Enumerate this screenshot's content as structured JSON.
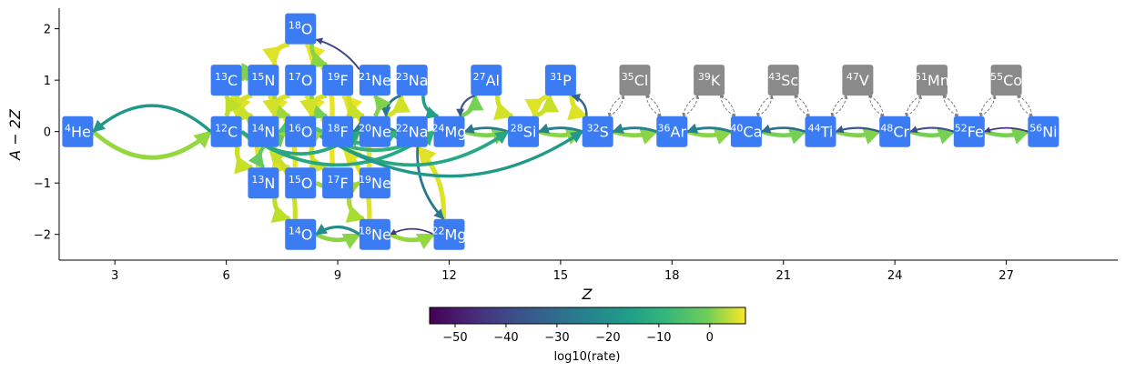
{
  "chart_data": {
    "type": "network",
    "xlabel": "Z",
    "ylabel": "A − 2Z",
    "xlim": [
      1.5,
      30
    ],
    "ylim": [
      -2.5,
      2.4
    ],
    "xticks": [
      3,
      6,
      9,
      12,
      15,
      18,
      21,
      24,
      27
    ],
    "yticks": [
      -2,
      -1,
      0,
      1,
      2
    ],
    "xtick_labels": [
      "3",
      "6",
      "9",
      "12",
      "15",
      "18",
      "21",
      "24",
      "27"
    ],
    "ytick_labels": [
      "−2",
      "−1",
      "0",
      "1",
      "2"
    ],
    "nodes": [
      {
        "mass": "4",
        "sym": "He",
        "z": 2,
        "n": 2,
        "status": "active"
      },
      {
        "mass": "12",
        "sym": "C",
        "z": 6,
        "n": 6,
        "status": "active"
      },
      {
        "mass": "13",
        "sym": "C",
        "z": 6,
        "n": 7,
        "status": "active"
      },
      {
        "mass": "13",
        "sym": "N",
        "z": 7,
        "n": 6,
        "status": "active"
      },
      {
        "mass": "14",
        "sym": "N",
        "z": 7,
        "n": 7,
        "status": "active"
      },
      {
        "mass": "15",
        "sym": "N",
        "z": 7,
        "n": 8,
        "status": "active"
      },
      {
        "mass": "14",
        "sym": "O",
        "z": 8,
        "n": 6,
        "status": "active"
      },
      {
        "mass": "15",
        "sym": "O",
        "z": 8,
        "n": 7,
        "status": "active"
      },
      {
        "mass": "16",
        "sym": "O",
        "z": 8,
        "n": 8,
        "status": "active"
      },
      {
        "mass": "17",
        "sym": "O",
        "z": 8,
        "n": 9,
        "status": "active"
      },
      {
        "mass": "18",
        "sym": "O",
        "z": 8,
        "n": 10,
        "status": "active"
      },
      {
        "mass": "17",
        "sym": "F",
        "z": 9,
        "n": 8,
        "status": "active"
      },
      {
        "mass": "18",
        "sym": "F",
        "z": 9,
        "n": 9,
        "status": "active"
      },
      {
        "mass": "19",
        "sym": "F",
        "z": 9,
        "n": 10,
        "status": "active"
      },
      {
        "mass": "18",
        "sym": "Ne",
        "z": 10,
        "n": 8,
        "status": "active"
      },
      {
        "mass": "19",
        "sym": "Ne",
        "z": 10,
        "n": 9,
        "status": "active"
      },
      {
        "mass": "20",
        "sym": "Ne",
        "z": 10,
        "n": 10,
        "status": "active"
      },
      {
        "mass": "21",
        "sym": "Ne",
        "z": 10,
        "n": 11,
        "status": "active"
      },
      {
        "mass": "22",
        "sym": "Na",
        "z": 11,
        "n": 11,
        "status": "active"
      },
      {
        "mass": "23",
        "sym": "Na",
        "z": 11,
        "n": 12,
        "status": "active"
      },
      {
        "mass": "22",
        "sym": "Mg",
        "z": 12,
        "n": 10,
        "status": "active"
      },
      {
        "mass": "24",
        "sym": "Mg",
        "z": 12,
        "n": 12,
        "status": "active"
      },
      {
        "mass": "27",
        "sym": "Al",
        "z": 13,
        "n": 14,
        "status": "active"
      },
      {
        "mass": "28",
        "sym": "Si",
        "z": 14,
        "n": 14,
        "status": "active"
      },
      {
        "mass": "31",
        "sym": "P",
        "z": 15,
        "n": 16,
        "status": "active"
      },
      {
        "mass": "32",
        "sym": "S",
        "z": 16,
        "n": 16,
        "status": "active"
      },
      {
        "mass": "35",
        "sym": "Cl",
        "z": 17,
        "n": 18,
        "status": "ghost"
      },
      {
        "mass": "36",
        "sym": "Ar",
        "z": 18,
        "n": 18,
        "status": "active"
      },
      {
        "mass": "39",
        "sym": "K",
        "z": 19,
        "n": 20,
        "status": "ghost"
      },
      {
        "mass": "40",
        "sym": "Ca",
        "z": 20,
        "n": 20,
        "status": "active"
      },
      {
        "mass": "43",
        "sym": "Sc",
        "z": 21,
        "n": 22,
        "status": "ghost"
      },
      {
        "mass": "44",
        "sym": "Ti",
        "z": 22,
        "n": 22,
        "status": "active"
      },
      {
        "mass": "47",
        "sym": "V",
        "z": 23,
        "n": 24,
        "status": "ghost"
      },
      {
        "mass": "48",
        "sym": "Cr",
        "z": 24,
        "n": 24,
        "status": "active"
      },
      {
        "mass": "51",
        "sym": "Mn",
        "z": 25,
        "n": 26,
        "status": "ghost"
      },
      {
        "mass": "52",
        "sym": "Fe",
        "z": 26,
        "n": 26,
        "status": "active"
      },
      {
        "mass": "55",
        "sym": "Co",
        "z": 27,
        "n": 28,
        "status": "ghost"
      },
      {
        "mass": "56",
        "sym": "Ni",
        "z": 28,
        "n": 28,
        "status": "active"
      }
    ],
    "links": [
      {
        "from": "4He",
        "to": "12C",
        "rate": -3,
        "curve": 0.35
      },
      {
        "from": "12C",
        "to": "4He",
        "rate": -22,
        "curve": 0.35
      },
      {
        "from": "12C",
        "to": "13N",
        "rate": 2,
        "curve": 0.2
      },
      {
        "from": "13N",
        "to": "13C",
        "rate": 4,
        "curve": 0.15
      },
      {
        "from": "13C",
        "to": "14N",
        "rate": 2,
        "curve": 0.2
      },
      {
        "from": "14N",
        "to": "15O",
        "rate": 4,
        "curve": 0.2
      },
      {
        "from": "15O",
        "to": "15N",
        "rate": 5,
        "curve": 0.15
      },
      {
        "from": "15N",
        "to": "12C",
        "rate": 3,
        "curve": 0.2
      },
      {
        "from": "15N",
        "to": "16O",
        "rate": -2,
        "curve": 0.15
      },
      {
        "from": "16O",
        "to": "17F",
        "rate": 3,
        "curve": 0.2
      },
      {
        "from": "17F",
        "to": "17O",
        "rate": 5,
        "curve": 0.15
      },
      {
        "from": "17O",
        "to": "14N",
        "rate": 3,
        "curve": 0.2
      },
      {
        "from": "17O",
        "to": "18F",
        "rate": -6,
        "curve": 0.15
      },
      {
        "from": "18F",
        "to": "18O",
        "rate": 5,
        "curve": 0.15
      },
      {
        "from": "18O",
        "to": "15N",
        "rate": 4,
        "curve": 0.2
      },
      {
        "from": "18O",
        "to": "19F",
        "rate": -4,
        "curve": 0.15
      },
      {
        "from": "19F",
        "to": "16O",
        "rate": 3,
        "curve": 0.2
      },
      {
        "from": "12C",
        "to": "16O",
        "rate": -8,
        "curve": 0.3
      },
      {
        "from": "16O",
        "to": "20Ne",
        "rate": -10,
        "curve": 0.3
      },
      {
        "from": "20Ne",
        "to": "24Mg",
        "rate": -14,
        "curve": 0.3
      },
      {
        "from": "24Mg",
        "to": "28Si",
        "rate": -5,
        "curve": 0.1
      },
      {
        "from": "28Si",
        "to": "32S",
        "rate": -4,
        "curve": 0.1
      },
      {
        "from": "32S",
        "to": "36Ar",
        "rate": -4,
        "curve": 0.1
      },
      {
        "from": "36Ar",
        "to": "40Ca",
        "rate": -4,
        "curve": 0.1
      },
      {
        "from": "40Ca",
        "to": "44Ti",
        "rate": -6,
        "curve": 0.1
      },
      {
        "from": "44Ti",
        "to": "48Cr",
        "rate": -5,
        "curve": 0.1
      },
      {
        "from": "48Cr",
        "to": "52Fe",
        "rate": -6,
        "curve": 0.1
      },
      {
        "from": "52Fe",
        "to": "56Ni",
        "rate": -6,
        "curve": 0.1
      },
      {
        "from": "28Si",
        "to": "24Mg",
        "rate": -30,
        "curve": 0.1
      },
      {
        "from": "32S",
        "to": "28Si",
        "rate": -28,
        "curve": 0.1
      },
      {
        "from": "36Ar",
        "to": "32S",
        "rate": -27,
        "curve": 0.1
      },
      {
        "from": "40Ca",
        "to": "36Ar",
        "rate": -28,
        "curve": 0.1
      },
      {
        "from": "44Ti",
        "to": "40Ca",
        "rate": -33,
        "curve": 0.1
      },
      {
        "from": "48Cr",
        "to": "44Ti",
        "rate": -38,
        "curve": 0.1
      },
      {
        "from": "52Fe",
        "to": "48Cr",
        "rate": -40,
        "curve": 0.1
      },
      {
        "from": "56Ni",
        "to": "52Fe",
        "rate": -45,
        "curve": 0.1
      },
      {
        "from": "20Ne",
        "to": "23Na",
        "rate": 3,
        "curve": 0.15
      },
      {
        "from": "23Na",
        "to": "20Ne",
        "rate": -30,
        "curve": 0.15
      },
      {
        "from": "23Na",
        "to": "24Mg",
        "rate": -20,
        "curve": 0.15
      },
      {
        "from": "24Mg",
        "to": "27Al",
        "rate": -6,
        "curve": 0.15
      },
      {
        "from": "27Al",
        "to": "24Mg",
        "rate": -38,
        "curve": 0.15
      },
      {
        "from": "27Al",
        "to": "28Si",
        "rate": 3,
        "curve": 0.15
      },
      {
        "from": "28Si",
        "to": "31P",
        "rate": 2,
        "curve": 0.15
      },
      {
        "from": "31P",
        "to": "28Si",
        "rate": 4,
        "curve": 0.15
      },
      {
        "from": "31P",
        "to": "32S",
        "rate": 4,
        "curve": 0.15
      },
      {
        "from": "32S",
        "to": "31P",
        "rate": -35,
        "curve": 0.15
      },
      {
        "from": "20Ne",
        "to": "21Ne",
        "rate": -5,
        "curve": 0.15
      },
      {
        "from": "21Ne",
        "to": "18O",
        "rate": -42,
        "curve": 0.1
      },
      {
        "from": "19Ne",
        "to": "19F",
        "rate": 5,
        "curve": 0.15
      },
      {
        "from": "19F",
        "to": "20Ne",
        "rate": 2,
        "curve": 0.15
      },
      {
        "from": "18Ne",
        "to": "18F",
        "rate": 4,
        "curve": 0.15
      },
      {
        "from": "17F",
        "to": "18Ne",
        "rate": -1,
        "curve": 0.15
      },
      {
        "from": "14O",
        "to": "18Ne",
        "rate": -4,
        "curve": 0.15
      },
      {
        "from": "14O",
        "to": "14N",
        "rate": 2,
        "curve": 0.15
      },
      {
        "from": "18Ne",
        "to": "14O",
        "rate": -25,
        "curve": 0.2
      },
      {
        "from": "18Ne",
        "to": "22Mg",
        "rate": -3,
        "curve": 0.15
      },
      {
        "from": "22Mg",
        "to": "18Ne",
        "rate": -45,
        "curve": 0.15
      },
      {
        "from": "22Mg",
        "to": "22Na",
        "rate": 4,
        "curve": 0.15
      },
      {
        "from": "22Na",
        "to": "22Mg",
        "rate": -30,
        "curve": 0.15
      },
      {
        "from": "13N",
        "to": "14O",
        "rate": 1,
        "curve": 0.15
      },
      {
        "from": "15O",
        "to": "19Ne",
        "rate": -2,
        "curve": 0.15
      },
      {
        "from": "18F",
        "to": "22Na",
        "rate": -4,
        "curve": 0.15
      },
      {
        "from": "22Na",
        "to": "18F",
        "rate": -28,
        "curve": 0.15
      },
      {
        "from": "16O",
        "to": "22Na",
        "rate": -15,
        "curve": 0.2
      },
      {
        "from": "12C",
        "to": "20Ne",
        "rate": -18,
        "curve": 0.3
      },
      {
        "from": "12C",
        "to": "24Mg",
        "rate": -18,
        "curve": 0.3
      },
      {
        "from": "16O",
        "to": "28Si",
        "rate": -18,
        "curve": 0.3
      },
      {
        "from": "16O",
        "to": "32S",
        "rate": -22,
        "curve": 0.3
      },
      {
        "from": "16O",
        "to": "24Mg",
        "rate": -15,
        "curve": 0.25
      },
      {
        "from": "14N",
        "to": "18F",
        "rate": -2,
        "curve": 0.15
      },
      {
        "from": "18F",
        "to": "14N",
        "rate": -10,
        "curve": 0.15
      },
      {
        "from": "12C",
        "to": "13C",
        "rate": 1,
        "curve": 0.1
      },
      {
        "from": "15N",
        "to": "13C",
        "rate": -5,
        "curve": 0.15
      },
      {
        "from": "14N",
        "to": "13N",
        "rate": -8,
        "curve": 0.15
      },
      {
        "from": "32S",
        "to": "35Cl",
        "rate": null,
        "curve": 0.1
      },
      {
        "from": "35Cl",
        "to": "32S",
        "rate": null,
        "curve": 0.1
      },
      {
        "from": "35Cl",
        "to": "36Ar",
        "rate": null,
        "curve": 0.1
      },
      {
        "from": "36Ar",
        "to": "35Cl",
        "rate": null,
        "curve": 0.1
      },
      {
        "from": "36Ar",
        "to": "39K",
        "rate": null,
        "curve": 0.1
      },
      {
        "from": "39K",
        "to": "36Ar",
        "rate": null,
        "curve": 0.1
      },
      {
        "from": "39K",
        "to": "40Ca",
        "rate": null,
        "curve": 0.1
      },
      {
        "from": "40Ca",
        "to": "39K",
        "rate": null,
        "curve": 0.1
      },
      {
        "from": "40Ca",
        "to": "43Sc",
        "rate": null,
        "curve": 0.1
      },
      {
        "from": "43Sc",
        "to": "40Ca",
        "rate": null,
        "curve": 0.1
      },
      {
        "from": "43Sc",
        "to": "44Ti",
        "rate": null,
        "curve": 0.1
      },
      {
        "from": "44Ti",
        "to": "43Sc",
        "rate": null,
        "curve": 0.1
      },
      {
        "from": "44Ti",
        "to": "47V",
        "rate": null,
        "curve": 0.1
      },
      {
        "from": "47V",
        "to": "44Ti",
        "rate": null,
        "curve": 0.1
      },
      {
        "from": "47V",
        "to": "48Cr",
        "rate": null,
        "curve": 0.1
      },
      {
        "from": "48Cr",
        "to": "47V",
        "rate": null,
        "curve": 0.1
      },
      {
        "from": "48Cr",
        "to": "51Mn",
        "rate": null,
        "curve": 0.1
      },
      {
        "from": "51Mn",
        "to": "48Cr",
        "rate": null,
        "curve": 0.1
      },
      {
        "from": "51Mn",
        "to": "52Fe",
        "rate": null,
        "curve": 0.1
      },
      {
        "from": "52Fe",
        "to": "51Mn",
        "rate": null,
        "curve": 0.1
      },
      {
        "from": "52Fe",
        "to": "55Co",
        "rate": null,
        "curve": 0.1
      },
      {
        "from": "55Co",
        "to": "52Fe",
        "rate": null,
        "curve": 0.1
      },
      {
        "from": "55Co",
        "to": "56Ni",
        "rate": null,
        "curve": 0.1
      },
      {
        "from": "56Ni",
        "to": "55Co",
        "rate": null,
        "curve": 0.1
      }
    ],
    "colorbar": {
      "label": "log10(rate)",
      "vmin": -55,
      "vmax": 7,
      "ticks": [
        -50,
        -40,
        -30,
        -20,
        -10,
        0
      ],
      "tick_labels": [
        "−50",
        "−40",
        "−30",
        "−20",
        "−10",
        "0"
      ],
      "colormap": "viridis"
    },
    "colors": {
      "active_node": "#3b7cf5",
      "ghost_node": "#8a8a8a",
      "ghost_link": "#7a7a7a"
    }
  }
}
